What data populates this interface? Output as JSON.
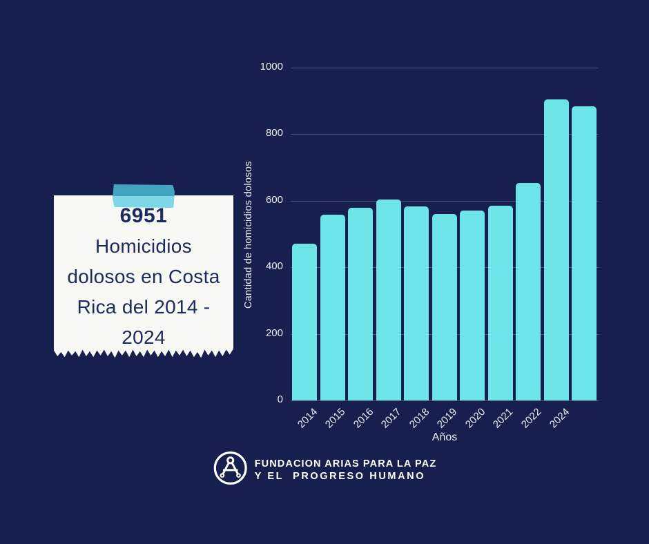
{
  "colors": {
    "background": "#161f4e",
    "bar": "#6ce4e8",
    "gridline": "rgba(214,222,245,0.28)",
    "axis_text": "#eceef5",
    "paper": "#f8f8f5",
    "note_text": "#1c2a5c",
    "tape_dark": "#43a4c0",
    "tape_light": "#7dd7e6",
    "footer_text": "#ffffff"
  },
  "note": {
    "headline_value": "6951",
    "lines": [
      "Homicidios",
      "dolosos en Costa",
      "Rica del 2014 -",
      "2024"
    ]
  },
  "chart_data": {
    "type": "bar",
    "title": "",
    "xlabel": "Años",
    "ylabel": "Cantidad de homicidios dolosos",
    "categories": [
      "2014",
      "2015",
      "2016",
      "2017",
      "2018",
      "2019",
      "2020",
      "2021",
      "2022",
      "2024",
      ""
    ],
    "values": [
      471,
      558,
      578,
      603,
      583,
      560,
      570,
      586,
      654,
      905,
      883
    ],
    "ylim": [
      0,
      1000
    ],
    "yticks": [
      0,
      200,
      400,
      600,
      800,
      1000
    ],
    "grid": "horizontal",
    "legend": "none",
    "bar_color": "#6ce4e8",
    "x_tick_rotation_deg": 45
  },
  "footer": {
    "org_line1": "FUNDACION ARIAS PARA LA PAZ",
    "org_line2": "Y EL  PROGRESO HUMANO"
  }
}
